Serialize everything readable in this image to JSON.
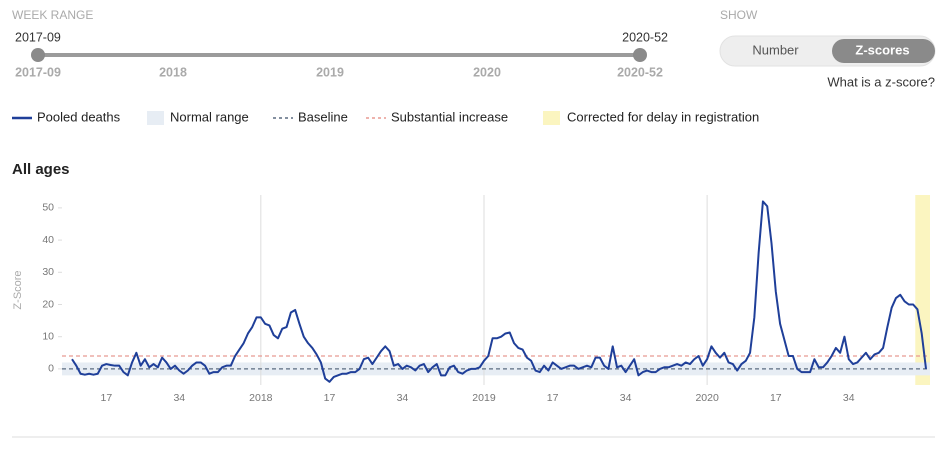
{
  "week_range": {
    "label": "WEEK RANGE",
    "start": "2017-09",
    "end": "2020-52",
    "ticks": [
      "2017-09",
      "2018",
      "2019",
      "2020",
      "2020-52"
    ]
  },
  "show": {
    "label": "SHOW",
    "options": [
      "Number",
      "Z-scores"
    ],
    "selected_index": 1,
    "help_link": "What is a z-score?"
  },
  "chart_data": {
    "type": "line",
    "title": "All ages",
    "ylabel": "Z-Score",
    "ylim": [
      -5,
      54
    ],
    "yticks": [
      0,
      10,
      20,
      30,
      40,
      50
    ],
    "categories": [
      null,
      null,
      null,
      null,
      null,
      null,
      null,
      null,
      "17",
      null,
      null,
      null,
      null,
      null,
      null,
      null,
      null,
      null,
      null,
      null,
      null,
      null,
      null,
      null,
      null,
      "34",
      null,
      null,
      null,
      null,
      null,
      null,
      null,
      null,
      null,
      null,
      null,
      null,
      null,
      null,
      null,
      null,
      null,
      null,
      "2018",
      null,
      null,
      null,
      null,
      null,
      null,
      null,
      null,
      null,
      null,
      null,
      null,
      null,
      null,
      null,
      "17",
      null,
      null,
      null,
      null,
      null,
      null,
      null,
      null,
      null,
      null,
      null,
      null,
      null,
      null,
      null,
      null,
      "34",
      null,
      null,
      null,
      null,
      null,
      null,
      null,
      null,
      null,
      null,
      null,
      null,
      null,
      null,
      null,
      null,
      null,
      null,
      "2019",
      null,
      null,
      null,
      null,
      null,
      null,
      null,
      null,
      null,
      null,
      null,
      null,
      null,
      null,
      null,
      "17",
      null,
      null,
      null,
      null,
      null,
      null,
      null,
      null,
      null,
      null,
      null,
      null,
      null,
      null,
      null,
      null,
      "34",
      null,
      null,
      null,
      null,
      null,
      null,
      null,
      null,
      null,
      null,
      null,
      null,
      null,
      null,
      null,
      null,
      null,
      null,
      "2020",
      null,
      null,
      null,
      null,
      null,
      null,
      null,
      null,
      null,
      null,
      null,
      null,
      null,
      null,
      null,
      "17",
      null,
      null,
      null,
      null,
      null,
      null,
      null,
      null,
      null,
      null,
      null,
      null,
      null,
      null,
      null,
      null,
      "34",
      null,
      null,
      null,
      null,
      null,
      null,
      null,
      null,
      null,
      null,
      null,
      null,
      null,
      null,
      null,
      null,
      null,
      null
    ],
    "series": [
      {
        "name": "Pooled deaths",
        "color": "#1f3f99",
        "values": [
          3,
          1,
          -1.5,
          -1.8,
          -1.5,
          -1.8,
          -1.5,
          1,
          1.5,
          1.2,
          1,
          1,
          -1,
          -2,
          2,
          5,
          1,
          3,
          0.5,
          1.5,
          0.5,
          3.5,
          2,
          0,
          1,
          -0.5,
          -1.5,
          -0.5,
          1,
          2,
          2,
          1,
          -1.5,
          -1,
          -1,
          0.5,
          1,
          1,
          4,
          6,
          8,
          11,
          13,
          16,
          16,
          14,
          13.5,
          10.5,
          9.5,
          12.5,
          13,
          17.5,
          18.3,
          14,
          10,
          8,
          6.5,
          4.5,
          2,
          -3,
          -4,
          -2.5,
          -2,
          -1.5,
          -1.5,
          -1,
          -1,
          0,
          3,
          3.5,
          1.5,
          3.5,
          5.5,
          7,
          5.5,
          1,
          1.5,
          0,
          1,
          0.5,
          -0.5,
          1,
          1.5,
          -1,
          0.5,
          1.5,
          -2,
          -2,
          0.5,
          1,
          -1,
          -1.5,
          -0.5,
          0,
          0,
          0.5,
          2.5,
          4,
          9.5,
          9.5,
          10,
          11,
          11.3,
          8,
          6.5,
          6,
          3.5,
          2.5,
          -0.5,
          -1,
          1,
          -0.5,
          2,
          1,
          0,
          0.5,
          1,
          1,
          0,
          0.5,
          1,
          0.5,
          3.5,
          3.5,
          1,
          0,
          7,
          0.5,
          1,
          -1,
          1,
          3,
          -2,
          -1,
          -0.5,
          -1,
          -1,
          0,
          0.5,
          0.5,
          1,
          1.5,
          1,
          2,
          1.5,
          3,
          4,
          1,
          3,
          7,
          5,
          3.5,
          5,
          2,
          1.5,
          -0.5,
          1.5,
          2.5,
          5,
          16,
          36,
          52,
          50.5,
          39,
          24,
          14,
          9,
          4,
          4,
          0,
          -1,
          -1,
          -1,
          3,
          0.5,
          0.5,
          2,
          4,
          6.5,
          5,
          10,
          3,
          1.5,
          2,
          3.5,
          5,
          3,
          4.5,
          5,
          6.5,
          13,
          19,
          22,
          23,
          21,
          20,
          20,
          18.5,
          11,
          0
        ]
      }
    ],
    "normal_range": {
      "name": "Normal range",
      "values": [
        -2,
        2
      ],
      "color": "#e7edf4"
    },
    "baseline": {
      "name": "Baseline",
      "value": 0,
      "color": "#5b6c80"
    },
    "substantial_increase": {
      "name": "Substantial increase",
      "value": 4,
      "color": "#e89a92"
    },
    "corrected": {
      "name": "Corrected for delay in registration",
      "color": "#fbf5c0"
    }
  }
}
